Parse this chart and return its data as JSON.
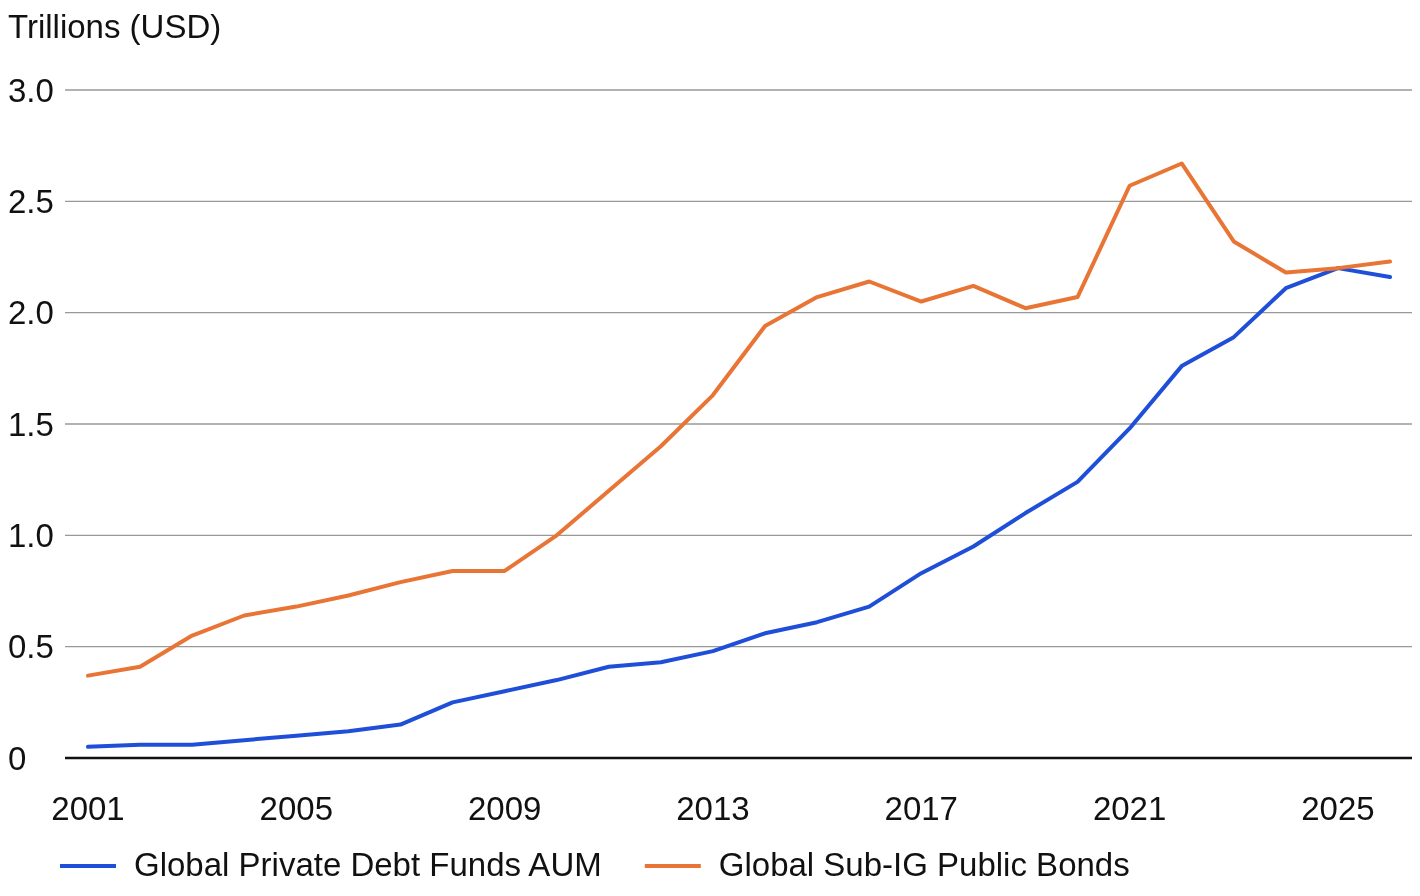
{
  "chart_data": {
    "type": "line",
    "ylabel": "Trillions (USD)",
    "categories": [
      "2001",
      null,
      null,
      null,
      "2005",
      null,
      null,
      null,
      "2009",
      null,
      null,
      null,
      "2013",
      null,
      null,
      null,
      "2017",
      null,
      null,
      null,
      "2021",
      null,
      null,
      null,
      "2025",
      null
    ],
    "series": [
      {
        "name": "Global Private Debt Funds AUM",
        "color": "#1f4fd8",
        "values": [
          0.05,
          0.06,
          0.06,
          0.08,
          0.1,
          0.12,
          0.15,
          0.25,
          0.3,
          0.35,
          0.41,
          0.43,
          0.48,
          0.56,
          0.61,
          0.68,
          0.83,
          0.95,
          1.1,
          1.24,
          1.48,
          1.76,
          1.89,
          2.11,
          2.2,
          2.16
        ]
      },
      {
        "name": "Global Sub-IG Public Bonds",
        "color": "#e87535",
        "values": [
          0.37,
          0.41,
          0.55,
          0.64,
          0.68,
          0.73,
          0.79,
          0.84,
          0.84,
          1.0,
          1.2,
          1.4,
          1.63,
          1.94,
          2.07,
          2.14,
          2.05,
          2.12,
          2.02,
          2.07,
          2.57,
          2.67,
          2.32,
          2.18,
          2.2,
          2.23
        ]
      }
    ],
    "ylim": [
      0,
      3
    ],
    "yticks": [
      {
        "value": 0,
        "label": "0"
      },
      {
        "value": 0.5,
        "label": "0.5"
      },
      {
        "value": 1,
        "label": "1.0"
      },
      {
        "value": 1.5,
        "label": "1.5"
      },
      {
        "value": 2,
        "label": "2.0"
      },
      {
        "value": 2.5,
        "label": "2.5"
      },
      {
        "value": 3,
        "label": "3.0"
      }
    ],
    "grid": "y",
    "legend": "bottom",
    "marker": "none",
    "line_style": "solid"
  }
}
